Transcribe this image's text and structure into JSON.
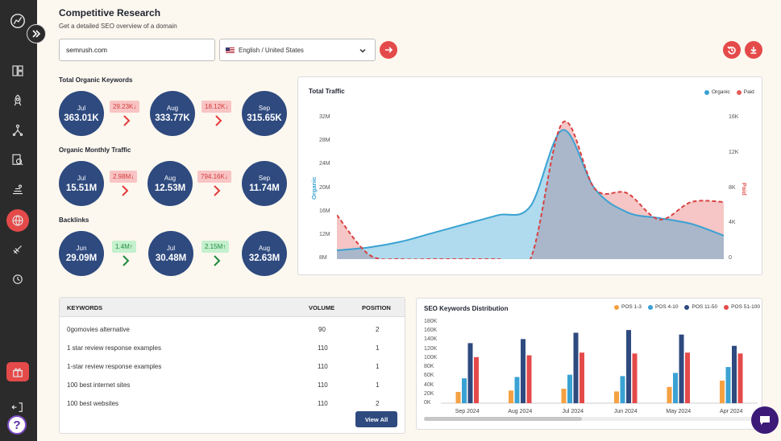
{
  "header": {
    "title": "Competitive Research",
    "subtitle": "Get a detailed SEO overview of a domain"
  },
  "search": {
    "domain_value": "semrush.com",
    "language_value": "English / United States"
  },
  "sidebar": {
    "items": [
      "logo",
      "dashboard",
      "rocket",
      "network",
      "search-report",
      "money",
      "globe",
      "satellite",
      "history",
      "gift",
      "logout",
      "help"
    ]
  },
  "metrics": {
    "organic_keywords": {
      "label": "Total Organic Keywords",
      "months": [
        {
          "month": "Jul",
          "value": "363.01K"
        },
        {
          "month": "Aug",
          "value": "333.77K"
        },
        {
          "month": "Sep",
          "value": "315.65K"
        }
      ],
      "deltas": [
        {
          "text": "29.23K",
          "direction": "down"
        },
        {
          "text": "18.12K",
          "direction": "down"
        }
      ]
    },
    "monthly_traffic": {
      "label": "Organic Monthly Traffic",
      "months": [
        {
          "month": "Jul",
          "value": "15.51M"
        },
        {
          "month": "Aug",
          "value": "12.53M"
        },
        {
          "month": "Sep",
          "value": "11.74M"
        }
      ],
      "deltas": [
        {
          "text": "2.98M",
          "direction": "down"
        },
        {
          "text": "794.16K",
          "direction": "down"
        }
      ]
    },
    "backlinks": {
      "label": "Backlinks",
      "months": [
        {
          "month": "Jun",
          "value": "29.09M"
        },
        {
          "month": "Jul",
          "value": "30.48M"
        },
        {
          "month": "Aug",
          "value": "32.63M"
        }
      ],
      "deltas": [
        {
          "text": "1.4M",
          "direction": "up"
        },
        {
          "text": "2.15M",
          "direction": "up"
        }
      ]
    }
  },
  "keywords_table": {
    "headers": [
      "KEYWORDS",
      "VOLUME",
      "POSITION"
    ],
    "rows": [
      {
        "keyword": "0gomovies alternative",
        "volume": "90",
        "position": "2"
      },
      {
        "keyword": "1 star review response examples",
        "volume": "110",
        "position": "1"
      },
      {
        "keyword": "1-star review response examples",
        "volume": "110",
        "position": "1"
      },
      {
        "keyword": "100 best internet sites",
        "volume": "110",
        "position": "1"
      },
      {
        "keyword": "100 best websites",
        "volume": "110",
        "position": "2"
      }
    ],
    "view_all_label": "View All"
  },
  "colors": {
    "organic": "#3aa2d3",
    "paid": "#e45a5a",
    "pos_1_3": "#f5a142",
    "pos_4_10": "#3aa2d3",
    "pos_11_50": "#2e4a7f",
    "pos_51_100": "#e54a4a",
    "accent": "#e54a4a",
    "navy": "#2e4a7f"
  },
  "chart_data": [
    {
      "type": "area",
      "title": "Total Traffic",
      "legend_position": "top-right",
      "y_left": {
        "label": "Organic",
        "ticks": [
          "32M",
          "28M",
          "24M",
          "20M",
          "16M",
          "12M",
          "8M"
        ],
        "range": [
          8000000,
          32000000
        ]
      },
      "y_right": {
        "label": "Paid",
        "ticks": [
          "16K",
          "12K",
          "8K",
          "4K",
          "0"
        ],
        "range": [
          0,
          16000
        ]
      },
      "series": [
        {
          "name": "Organic",
          "values": [
            9.5,
            10.0,
            11.0,
            12.5,
            14.0,
            15.5,
            17.0,
            30.0,
            20.0,
            16.0,
            15.0,
            14.0,
            12.0
          ],
          "unit": "M"
        },
        {
          "name": "Paid",
          "values": [
            5000,
            500,
            0,
            0,
            0,
            0,
            0,
            15500,
            8000,
            7500,
            4500,
            6500,
            6500
          ],
          "unit": "count"
        }
      ]
    },
    {
      "type": "bar",
      "title": "SEO Keywords Distribution",
      "legend_position": "top-right",
      "categories": [
        "Sep 2024",
        "Aug 2024",
        "Jul 2024",
        "Jun 2024",
        "May 2024",
        "Apr 2024"
      ],
      "ylim": [
        0,
        180000
      ],
      "yticks": [
        "180K",
        "160K",
        "140K",
        "120K",
        "100K",
        "80K",
        "60K",
        "40K",
        "20K",
        "0K"
      ],
      "series": [
        {
          "name": "POS 1-3",
          "values": [
            25000,
            28000,
            32000,
            26000,
            36000,
            50000
          ]
        },
        {
          "name": "POS 4-10",
          "values": [
            55000,
            58000,
            63000,
            60000,
            67000,
            80000
          ]
        },
        {
          "name": "POS 11-50",
          "values": [
            133000,
            142000,
            156000,
            162000,
            152000,
            127000
          ]
        },
        {
          "name": "POS 51-100",
          "values": [
            102000,
            106000,
            112000,
            110000,
            112000,
            110000
          ]
        }
      ]
    }
  ]
}
